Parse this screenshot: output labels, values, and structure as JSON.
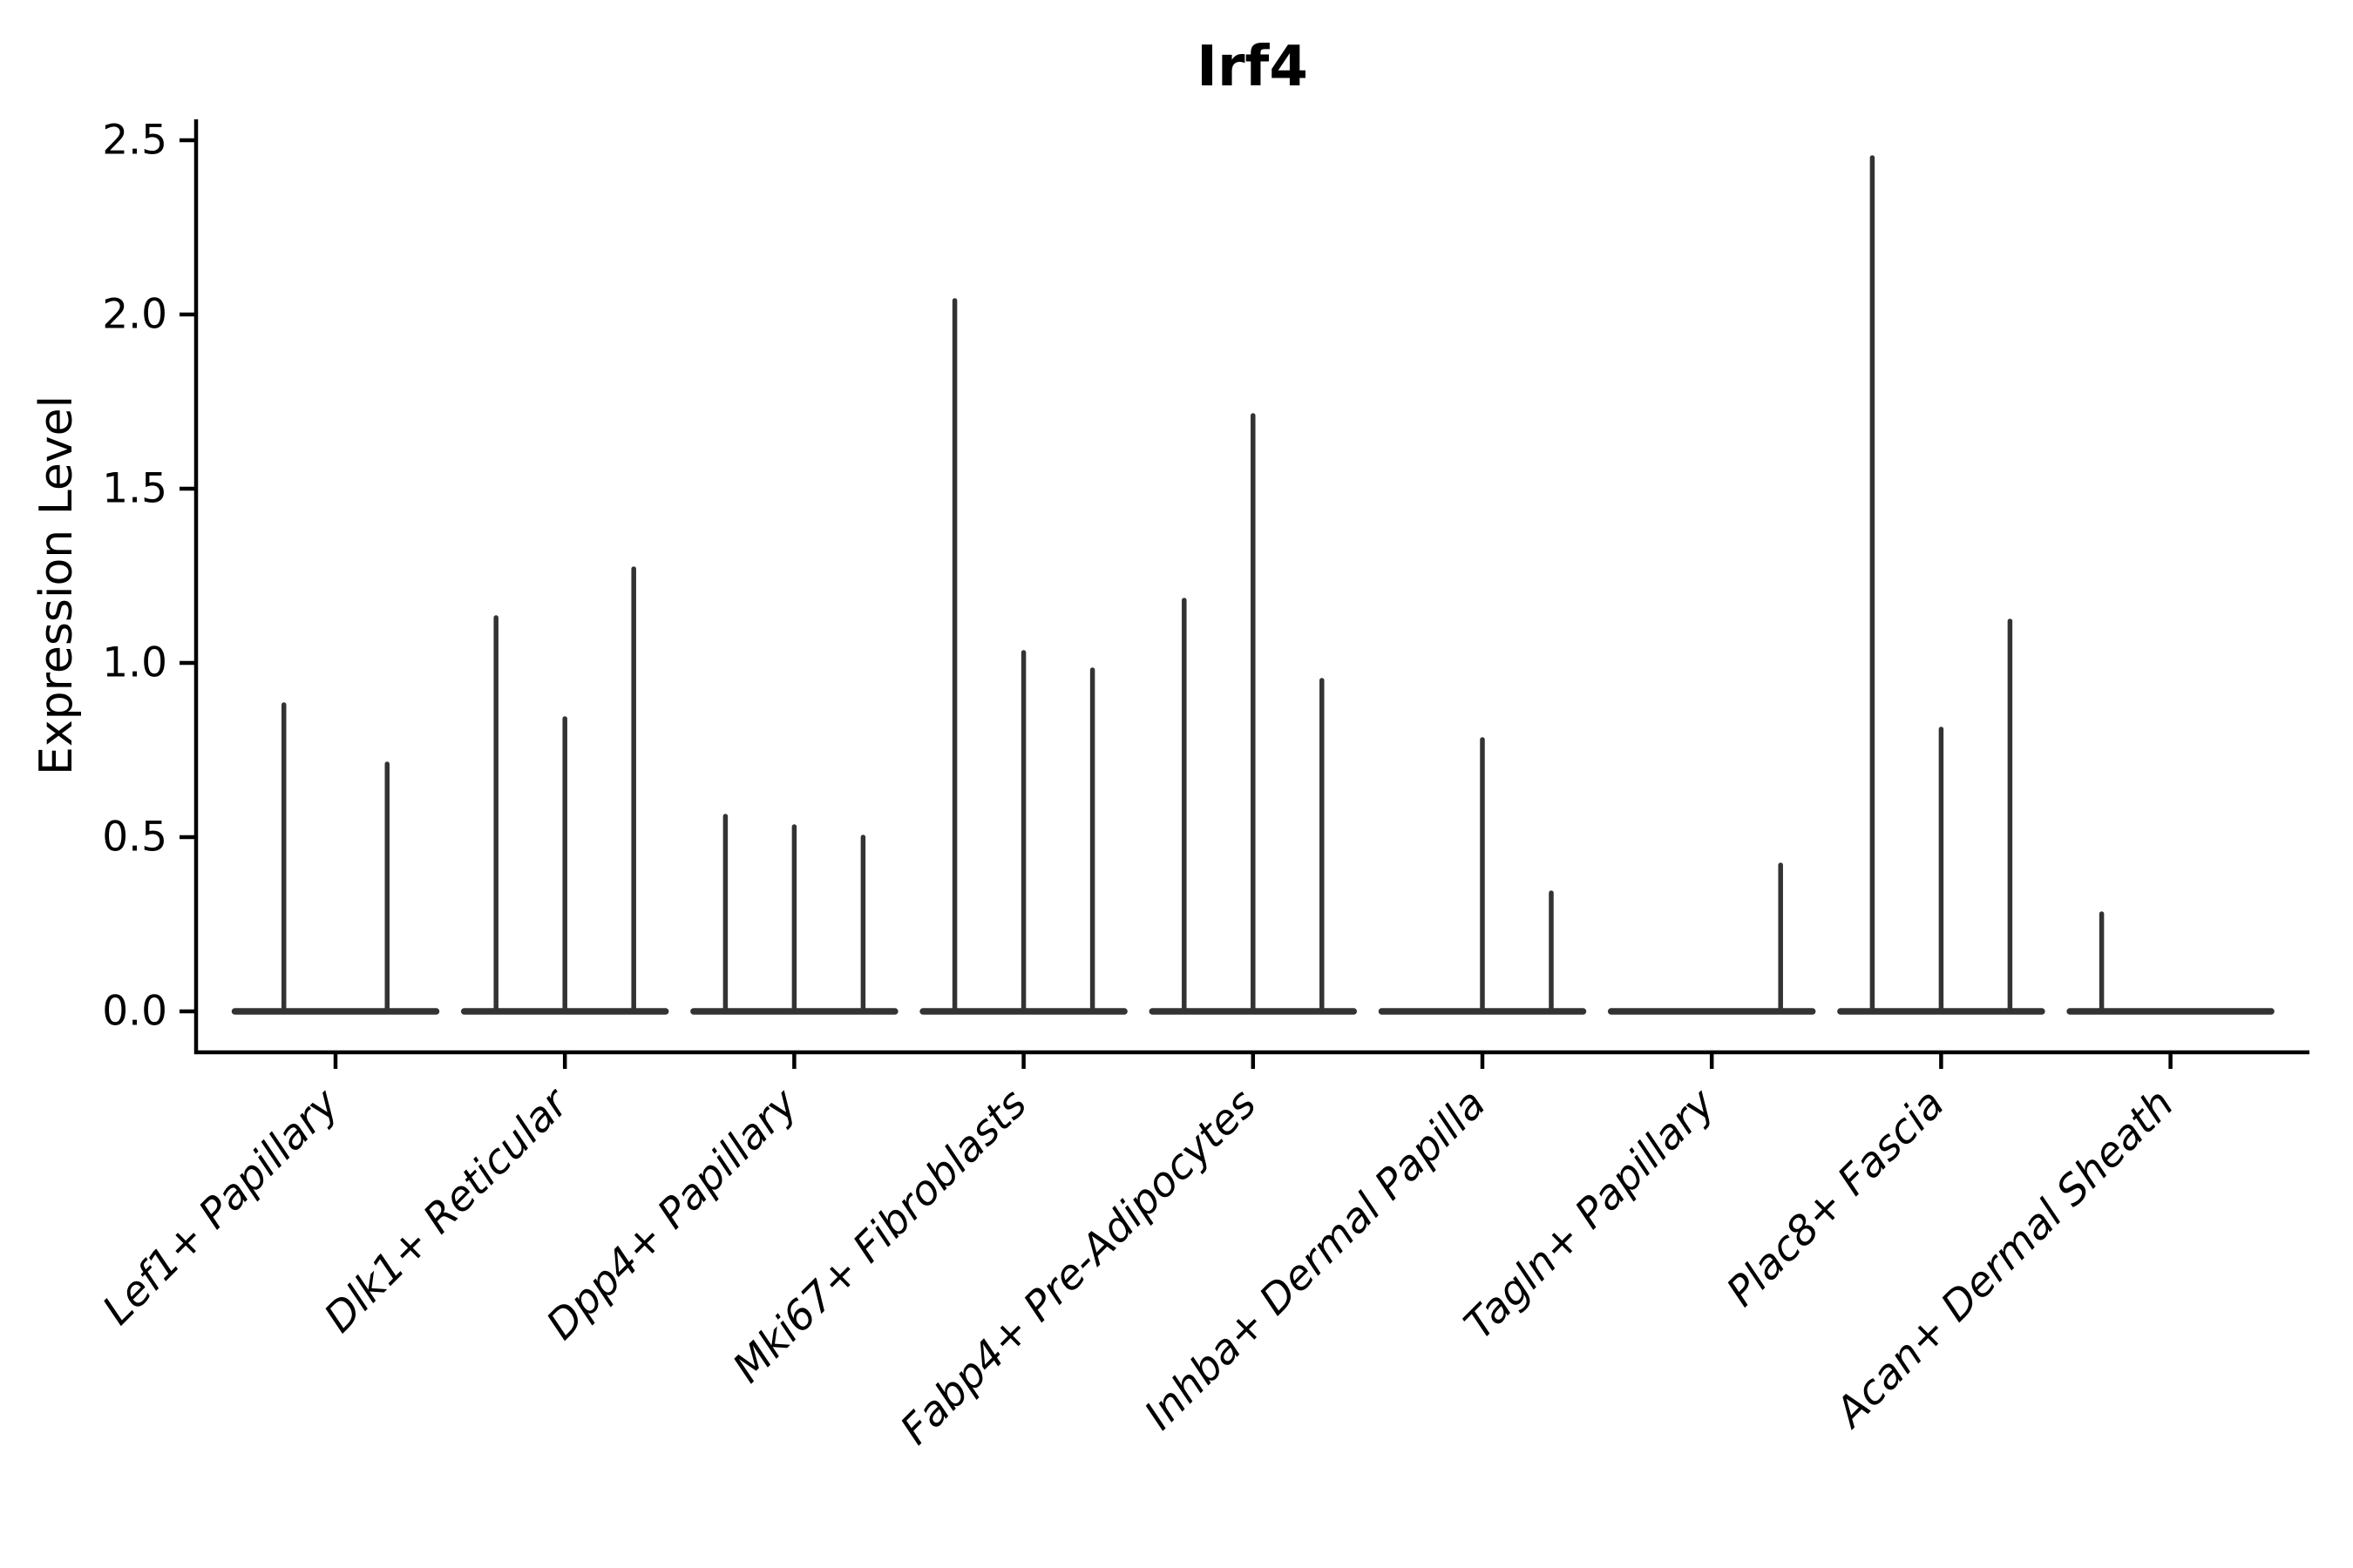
{
  "chart_data": {
    "type": "violin",
    "title": "Irf4",
    "xlabel": "",
    "ylabel": "Expression Level",
    "ylim": [
      0,
      2.5
    ],
    "yticks": [
      0.0,
      0.5,
      1.0,
      1.5,
      2.0,
      2.5
    ],
    "ytick_labels": [
      "0.0",
      "0.5",
      "1.0",
      "1.5",
      "2.0",
      "2.5"
    ],
    "grid": false,
    "legend": "none",
    "violin_color": "#333333",
    "spine_color": "#000000",
    "categories": [
      "Lef1+ Papillary",
      "Dlk1+ Reticular",
      "Dpp4+ Papillary",
      "Mki67+ Fibroblasts",
      "Fabp4+ Pre-Adipocytes",
      "Inhba+ Dermal Papilla",
      "Tagln+ Papillary",
      "Plac8+ Fascia",
      "Acan+ Dermal Sheath"
    ],
    "groups": [
      {
        "label": "Lef1+ Papillary",
        "violin_maxima": [
          0.88,
          0.71
        ]
      },
      {
        "label": "Dlk1+ Reticular",
        "violin_maxima": [
          1.13,
          0.84,
          1.27
        ]
      },
      {
        "label": "Dpp4+ Papillary",
        "violin_maxima": [
          0.56,
          0.53,
          0.5
        ]
      },
      {
        "label": "Mki67+ Fibroblasts",
        "violin_maxima": [
          2.04,
          1.03,
          0.98
        ]
      },
      {
        "label": "Fabp4+ Pre-Adipocytes",
        "violin_maxima": [
          1.18,
          1.71,
          0.95
        ]
      },
      {
        "label": "Inhba+ Dermal Papilla",
        "violin_maxima": [
          0,
          0.78,
          0.34
        ]
      },
      {
        "label": "Tagln+ Papillary",
        "violin_maxima": [
          0,
          0,
          0.42
        ]
      },
      {
        "label": "Plac8+ Fascia",
        "violin_maxima": [
          2.45,
          0.81,
          1.12
        ]
      },
      {
        "label": "Acan+ Dermal Sheath",
        "violin_maxima": [
          0.28,
          0,
          0
        ]
      }
    ]
  }
}
